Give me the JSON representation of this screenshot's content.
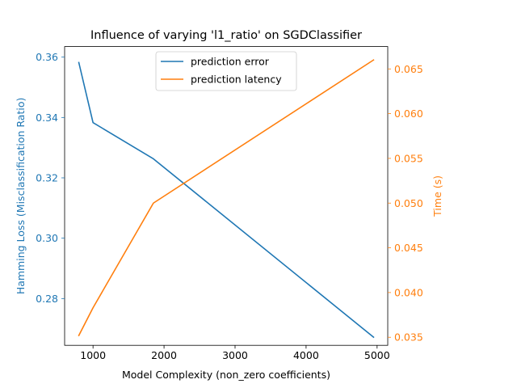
{
  "chart_data": {
    "type": "line",
    "title": "Influence of varying 'l1_ratio' on SGDClassifier",
    "xlabel": "Model Complexity (non_zero coefficients)",
    "ylabel_left": "Hamming Loss (Misclassification Ratio)",
    "ylabel_right": "Time (s)",
    "x": [
      800,
      1000,
      1850,
      4950
    ],
    "xlim": [
      600,
      5150
    ],
    "ylim_left": [
      0.2645,
      0.3635
    ],
    "ylim_right": [
      0.0341,
      0.0675
    ],
    "xticks": [
      1000,
      2000,
      3000,
      4000,
      5000
    ],
    "yticks_left": [
      0.28,
      0.3,
      0.32,
      0.34,
      0.36
    ],
    "yticks_right": [
      0.035,
      0.04,
      0.045,
      0.05,
      0.055,
      0.06,
      0.065
    ],
    "xtick_labels": [
      "1000",
      "2000",
      "3000",
      "4000",
      "5000"
    ],
    "ytick_labels_left": [
      "0.28",
      "0.30",
      "0.32",
      "0.34",
      "0.36"
    ],
    "ytick_labels_right": [
      "0.035",
      "0.040",
      "0.045",
      "0.050",
      "0.055",
      "0.060",
      "0.065"
    ],
    "series": [
      {
        "name": "prediction error",
        "axis": "left",
        "color": "#1f77b4",
        "values": [
          0.3582,
          0.3383,
          0.3263,
          0.2672
        ]
      },
      {
        "name": "prediction latency",
        "axis": "right",
        "color": "#ff7f0e",
        "values": [
          0.0352,
          0.0383,
          0.05,
          0.066
        ]
      }
    ],
    "legend_position": "top-center",
    "grid": false,
    "left_axis_color": "#1f77b4",
    "right_axis_color": "#ff7f0e"
  }
}
